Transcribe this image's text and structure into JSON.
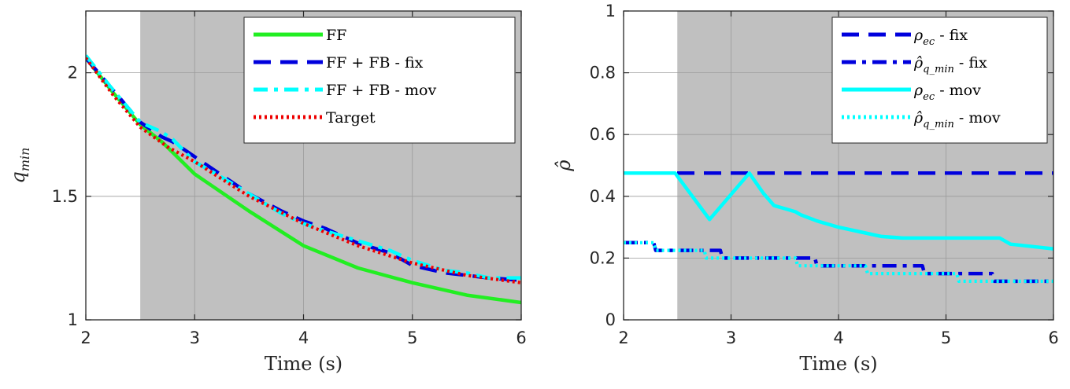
{
  "chart_data": [
    {
      "type": "line",
      "xlabel": "Time (s)",
      "ylabel": "q_min",
      "ylabel_parts": {
        "main": "q",
        "sub": "min"
      },
      "xlim": [
        2,
        6
      ],
      "ylim": [
        1,
        2.25
      ],
      "xticks": [
        "2",
        "3",
        "4",
        "5",
        "6"
      ],
      "yticks": [
        "1",
        "1.5",
        "2"
      ],
      "ytick_values": [
        1,
        1.5,
        2
      ],
      "grid": true,
      "shaded_region": {
        "from": 2.5,
        "to": 6,
        "color": "#c0c0c0"
      },
      "legend_position": "top-right",
      "series": [
        {
          "name": "FF",
          "color": "#22ee22",
          "style": "solid",
          "x": [
            2,
            2.25,
            2.5,
            2.7,
            3,
            3.5,
            4,
            4.5,
            5,
            5.5,
            6
          ],
          "y": [
            2.06,
            1.92,
            1.79,
            1.72,
            1.59,
            1.44,
            1.3,
            1.21,
            1.15,
            1.1,
            1.07
          ]
        },
        {
          "name": "FF + FB - fix",
          "color": "#0000dd",
          "style": "dashed",
          "x": [
            2,
            2.25,
            2.5,
            2.7,
            2.8,
            3,
            3.2,
            3.5,
            3.8,
            4,
            4.2,
            4.5,
            4.8,
            5,
            5.3,
            5.5,
            5.7,
            6
          ],
          "y": [
            2.06,
            1.93,
            1.8,
            1.74,
            1.72,
            1.66,
            1.6,
            1.51,
            1.44,
            1.4,
            1.37,
            1.31,
            1.27,
            1.22,
            1.19,
            1.18,
            1.17,
            1.16
          ]
        },
        {
          "name": "FF + FB - mov",
          "color": "#00ffff",
          "style": "dashdot",
          "x": [
            2,
            2.25,
            2.5,
            2.7,
            2.8,
            3,
            3.2,
            3.5,
            3.8,
            4,
            4.2,
            4.5,
            4.8,
            5,
            5.3,
            5.5,
            5.7,
            6
          ],
          "y": [
            2.07,
            1.93,
            1.8,
            1.76,
            1.73,
            1.64,
            1.59,
            1.51,
            1.43,
            1.39,
            1.36,
            1.32,
            1.28,
            1.24,
            1.2,
            1.19,
            1.17,
            1.17
          ]
        },
        {
          "name": "Target",
          "color": "#ee0000",
          "style": "dotted",
          "x": [
            2,
            2.25,
            2.5,
            2.75,
            3,
            3.5,
            4,
            4.5,
            5,
            5.5,
            6
          ],
          "y": [
            2.06,
            1.91,
            1.78,
            1.7,
            1.64,
            1.5,
            1.39,
            1.3,
            1.23,
            1.18,
            1.15
          ]
        }
      ]
    },
    {
      "type": "line",
      "xlabel": "Time (s)",
      "ylabel": "ρ̂",
      "xlim": [
        2,
        6
      ],
      "ylim": [
        0,
        1
      ],
      "xticks": [
        "2",
        "3",
        "4",
        "5",
        "6"
      ],
      "yticks": [
        "0",
        "0.2",
        "0.4",
        "0.6",
        "0.8",
        "1"
      ],
      "ytick_values": [
        0,
        0.2,
        0.4,
        0.6,
        0.8,
        1
      ],
      "grid": true,
      "shaded_region": {
        "from": 2.5,
        "to": 6,
        "color": "#c0c0c0"
      },
      "legend_position": "top-right",
      "series": [
        {
          "name": "ρ_ec - fix",
          "label_parts": {
            "main": "ρ",
            "sub": "ec",
            "suffix": " - fix"
          },
          "color": "#0000dd",
          "style": "dashed",
          "x": [
            2,
            6
          ],
          "y": [
            0.475,
            0.475
          ]
        },
        {
          "name": "ρ̂_qmin - fix",
          "label_parts": {
            "main": "ρ̂",
            "sub": "q_min",
            "suffix": " - fix"
          },
          "color": "#0000dd",
          "style": "dashdot",
          "x": [
            2,
            2.28,
            2.3,
            2.9,
            2.92,
            3.78,
            3.8,
            4.78,
            4.8,
            5.43,
            5.45,
            6
          ],
          "y": [
            0.25,
            0.25,
            0.225,
            0.225,
            0.2,
            0.2,
            0.175,
            0.175,
            0.15,
            0.15,
            0.125,
            0.125
          ]
        },
        {
          "name": "ρ_ec - mov",
          "label_parts": {
            "main": "ρ",
            "sub": "ec",
            "suffix": " - mov"
          },
          "color": "#00ffff",
          "style": "solid",
          "x": [
            2,
            2.48,
            2.8,
            3.17,
            3.3,
            3.4,
            3.5,
            3.6,
            3.65,
            3.8,
            4,
            4.2,
            4.4,
            4.6,
            5,
            5.5,
            5.6,
            6
          ],
          "y": [
            0.475,
            0.475,
            0.325,
            0.475,
            0.41,
            0.37,
            0.36,
            0.35,
            0.34,
            0.32,
            0.3,
            0.285,
            0.27,
            0.265,
            0.265,
            0.265,
            0.245,
            0.23
          ]
        },
        {
          "name": "ρ̂_qmin - mov",
          "label_parts": {
            "main": "ρ̂",
            "sub": "q_min",
            "suffix": " - mov"
          },
          "color": "#00ffff",
          "style": "dotted",
          "x": [
            2,
            2.28,
            2.3,
            2.75,
            2.77,
            3.6,
            3.62,
            4.25,
            4.27,
            5.1,
            5.12,
            5.48,
            5.5,
            6
          ],
          "y": [
            0.25,
            0.25,
            0.225,
            0.225,
            0.2,
            0.2,
            0.175,
            0.175,
            0.15,
            0.15,
            0.125,
            0.125,
            0.125,
            0.125
          ]
        }
      ]
    }
  ]
}
